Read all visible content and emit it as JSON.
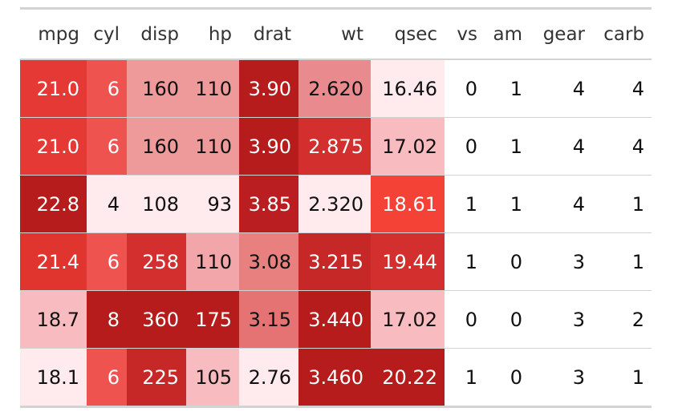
{
  "table": {
    "columns": [
      "mpg",
      "cyl",
      "disp",
      "hp",
      "drat",
      "wt",
      "qsec",
      "vs",
      "am",
      "gear",
      "carb"
    ],
    "rows": [
      [
        "21.0",
        "6",
        "160",
        "110",
        "3.90",
        "2.620",
        "16.46",
        "0",
        "1",
        "4",
        "4"
      ],
      [
        "21.0",
        "6",
        "160",
        "110",
        "3.90",
        "2.875",
        "17.02",
        "0",
        "1",
        "4",
        "4"
      ],
      [
        "22.8",
        "4",
        "108",
        "93",
        "3.85",
        "2.320",
        "18.61",
        "1",
        "1",
        "4",
        "1"
      ],
      [
        "21.4",
        "6",
        "258",
        "110",
        "3.08",
        "3.215",
        "19.44",
        "1",
        "0",
        "3",
        "1"
      ],
      [
        "18.7",
        "8",
        "360",
        "175",
        "3.15",
        "3.440",
        "17.02",
        "0",
        "0",
        "3",
        "2"
      ],
      [
        "18.1",
        "6",
        "225",
        "105",
        "2.76",
        "3.460",
        "20.22",
        "1",
        "0",
        "3",
        "1"
      ]
    ],
    "cell_colors": [
      [
        "#E53935",
        "#EF5350",
        "#EF9A9A",
        "#EF9A9A",
        "#B71C1C",
        "#E88A8E",
        "#FFEBEE",
        "#FFFFFF",
        "#FFFFFF",
        "#FFFFFF",
        "#FFFFFF"
      ],
      [
        "#E53935",
        "#EF5350",
        "#EF9A9A",
        "#EF9A9A",
        "#B71C1C",
        "#D32F2F",
        "#F8BBC0",
        "#FFFFFF",
        "#FFFFFF",
        "#FFFFFF",
        "#FFFFFF"
      ],
      [
        "#B71C1C",
        "#FFEBEE",
        "#FFEBEE",
        "#FFEBEE",
        "#BA1E21",
        "#FFEBEE",
        "#F44336",
        "#FFFFFF",
        "#FFFFFF",
        "#FFFFFF",
        "#FFFFFF"
      ],
      [
        "#E0342F",
        "#EF5350",
        "#D32F2F",
        "#F2A6AA",
        "#E88080",
        "#C62828",
        "#D32F2F",
        "#FFFFFF",
        "#FFFFFF",
        "#FFFFFF",
        "#FFFFFF"
      ],
      [
        "#F8BBC0",
        "#B71C1C",
        "#B71C1C",
        "#B71C1C",
        "#E57373",
        "#B71C1C",
        "#F8BBC0",
        "#FFFFFF",
        "#FFFFFF",
        "#FFFFFF",
        "#FFFFFF"
      ],
      [
        "#FFEBEE",
        "#EF5350",
        "#C62828",
        "#F8BBC0",
        "#FFEBEE",
        "#B71C1C",
        "#B71C1C",
        "#FFFFFF",
        "#FFFFFF",
        "#FFFFFF",
        "#FFFFFF"
      ]
    ]
  }
}
